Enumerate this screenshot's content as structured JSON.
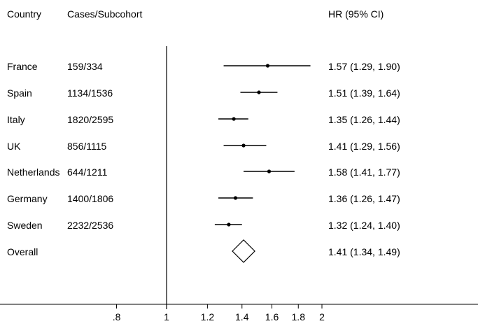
{
  "header": {
    "country_col": "Country",
    "cases_col": "Cases/Subcohort",
    "hr_col": "HR (95% CI)"
  },
  "rows": [
    {
      "country": "France",
      "cases": "159/334",
      "hr_text": "1.57 (1.29, 1.90)"
    },
    {
      "country": "Spain",
      "cases": "1134/1536",
      "hr_text": "1.51 (1.39, 1.64)"
    },
    {
      "country": "Italy",
      "cases": "1820/2595",
      "hr_text": "1.35 (1.26, 1.44)"
    },
    {
      "country": "UK",
      "cases": "856/1115",
      "hr_text": "1.41 (1.29, 1.56)"
    },
    {
      "country": "Netherlands",
      "cases": "644/1211",
      "hr_text": "1.58 (1.41, 1.77)"
    },
    {
      "country": "Germany",
      "cases": "1400/1806",
      "hr_text": "1.36 (1.26, 1.47)"
    },
    {
      "country": "Sweden",
      "cases": "2232/2536",
      "hr_text": "1.32 (1.24, 1.40)"
    },
    {
      "country": "Overall",
      "cases": "",
      "hr_text": "1.41 (1.34, 1.49)"
    }
  ],
  "chart_data": {
    "type": "forest",
    "scale": "log",
    "reference_line": 1,
    "xticks": [
      {
        "value": 0.8,
        "label": ".8"
      },
      {
        "value": 1,
        "label": "1"
      },
      {
        "value": 1.2,
        "label": "1.2"
      },
      {
        "value": 1.4,
        "label": "1.4"
      },
      {
        "value": 1.6,
        "label": "1.6"
      },
      {
        "value": 1.8,
        "label": "1.8"
      },
      {
        "value": 2,
        "label": "2"
      }
    ],
    "estimates": [
      {
        "label": "France",
        "hr": 1.57,
        "lo": 1.29,
        "hi": 1.9
      },
      {
        "label": "Spain",
        "hr": 1.51,
        "lo": 1.39,
        "hi": 1.64
      },
      {
        "label": "Italy",
        "hr": 1.35,
        "lo": 1.26,
        "hi": 1.44
      },
      {
        "label": "UK",
        "hr": 1.41,
        "lo": 1.29,
        "hi": 1.56
      },
      {
        "label": "Netherlands",
        "hr": 1.58,
        "lo": 1.41,
        "hi": 1.77
      },
      {
        "label": "Germany",
        "hr": 1.36,
        "lo": 1.26,
        "hi": 1.47
      },
      {
        "label": "Sweden",
        "hr": 1.32,
        "lo": 1.24,
        "hi": 1.4
      }
    ],
    "overall": {
      "label": "Overall",
      "hr": 1.41,
      "lo": 1.34,
      "hi": 1.49
    }
  }
}
